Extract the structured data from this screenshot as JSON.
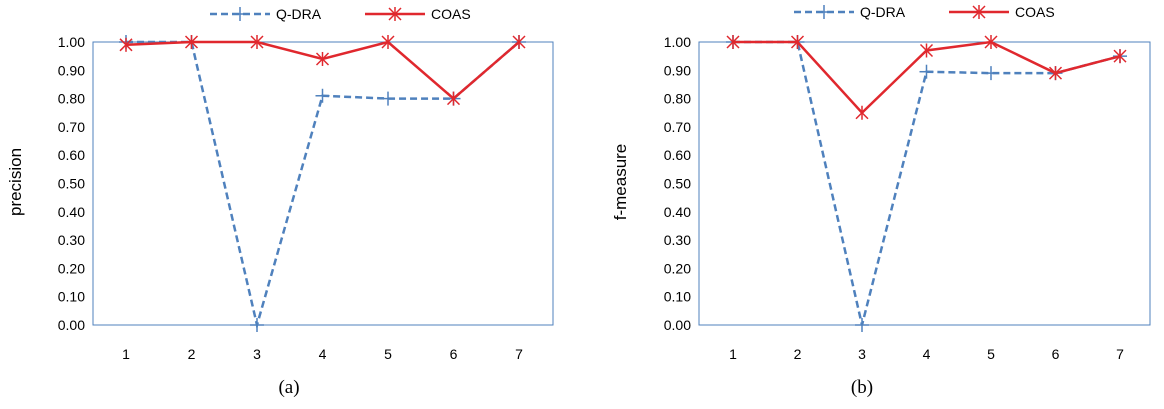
{
  "chart_data": [
    {
      "type": "line",
      "categories": [
        "1",
        "2",
        "3",
        "4",
        "5",
        "6",
        "7"
      ],
      "ylabel": "precision",
      "xlabel": "",
      "ylim": [
        0,
        1
      ],
      "yticks": [
        "0.00",
        "0.10",
        "0.20",
        "0.30",
        "0.40",
        "0.50",
        "0.60",
        "0.70",
        "0.80",
        "0.90",
        "1.00"
      ],
      "caption": "(a)",
      "legend_position": "top",
      "series": [
        {
          "name": "Q-DRA",
          "values": [
            1.0,
            1.0,
            0.0,
            0.81,
            0.8,
            0.8,
            1.0
          ],
          "color": "#4F81BD",
          "style": "dashed",
          "marker": "plus"
        },
        {
          "name": "COAS",
          "values": [
            0.99,
            1.0,
            1.0,
            0.94,
            1.0,
            0.8,
            1.0
          ],
          "color": "#E0282E",
          "style": "solid",
          "marker": "star"
        }
      ]
    },
    {
      "type": "line",
      "categories": [
        "1",
        "2",
        "3",
        "4",
        "5",
        "6",
        "7"
      ],
      "ylabel": "f-measure",
      "xlabel": "",
      "ylim": [
        0,
        1
      ],
      "yticks": [
        "0.00",
        "0.10",
        "0.20",
        "0.30",
        "0.40",
        "0.50",
        "0.60",
        "0.70",
        "0.80",
        "0.90",
        "1.00"
      ],
      "caption": "(b)",
      "legend_position": "top",
      "series": [
        {
          "name": "Q-DRA",
          "values": [
            1.0,
            1.0,
            0.0,
            0.895,
            0.89,
            0.89,
            0.95
          ],
          "color": "#4F81BD",
          "style": "dashed",
          "marker": "plus"
        },
        {
          "name": "COAS",
          "values": [
            1.0,
            1.0,
            0.75,
            0.97,
            1.0,
            0.89,
            0.95
          ],
          "color": "#E0282E",
          "style": "solid",
          "marker": "star"
        }
      ]
    }
  ]
}
